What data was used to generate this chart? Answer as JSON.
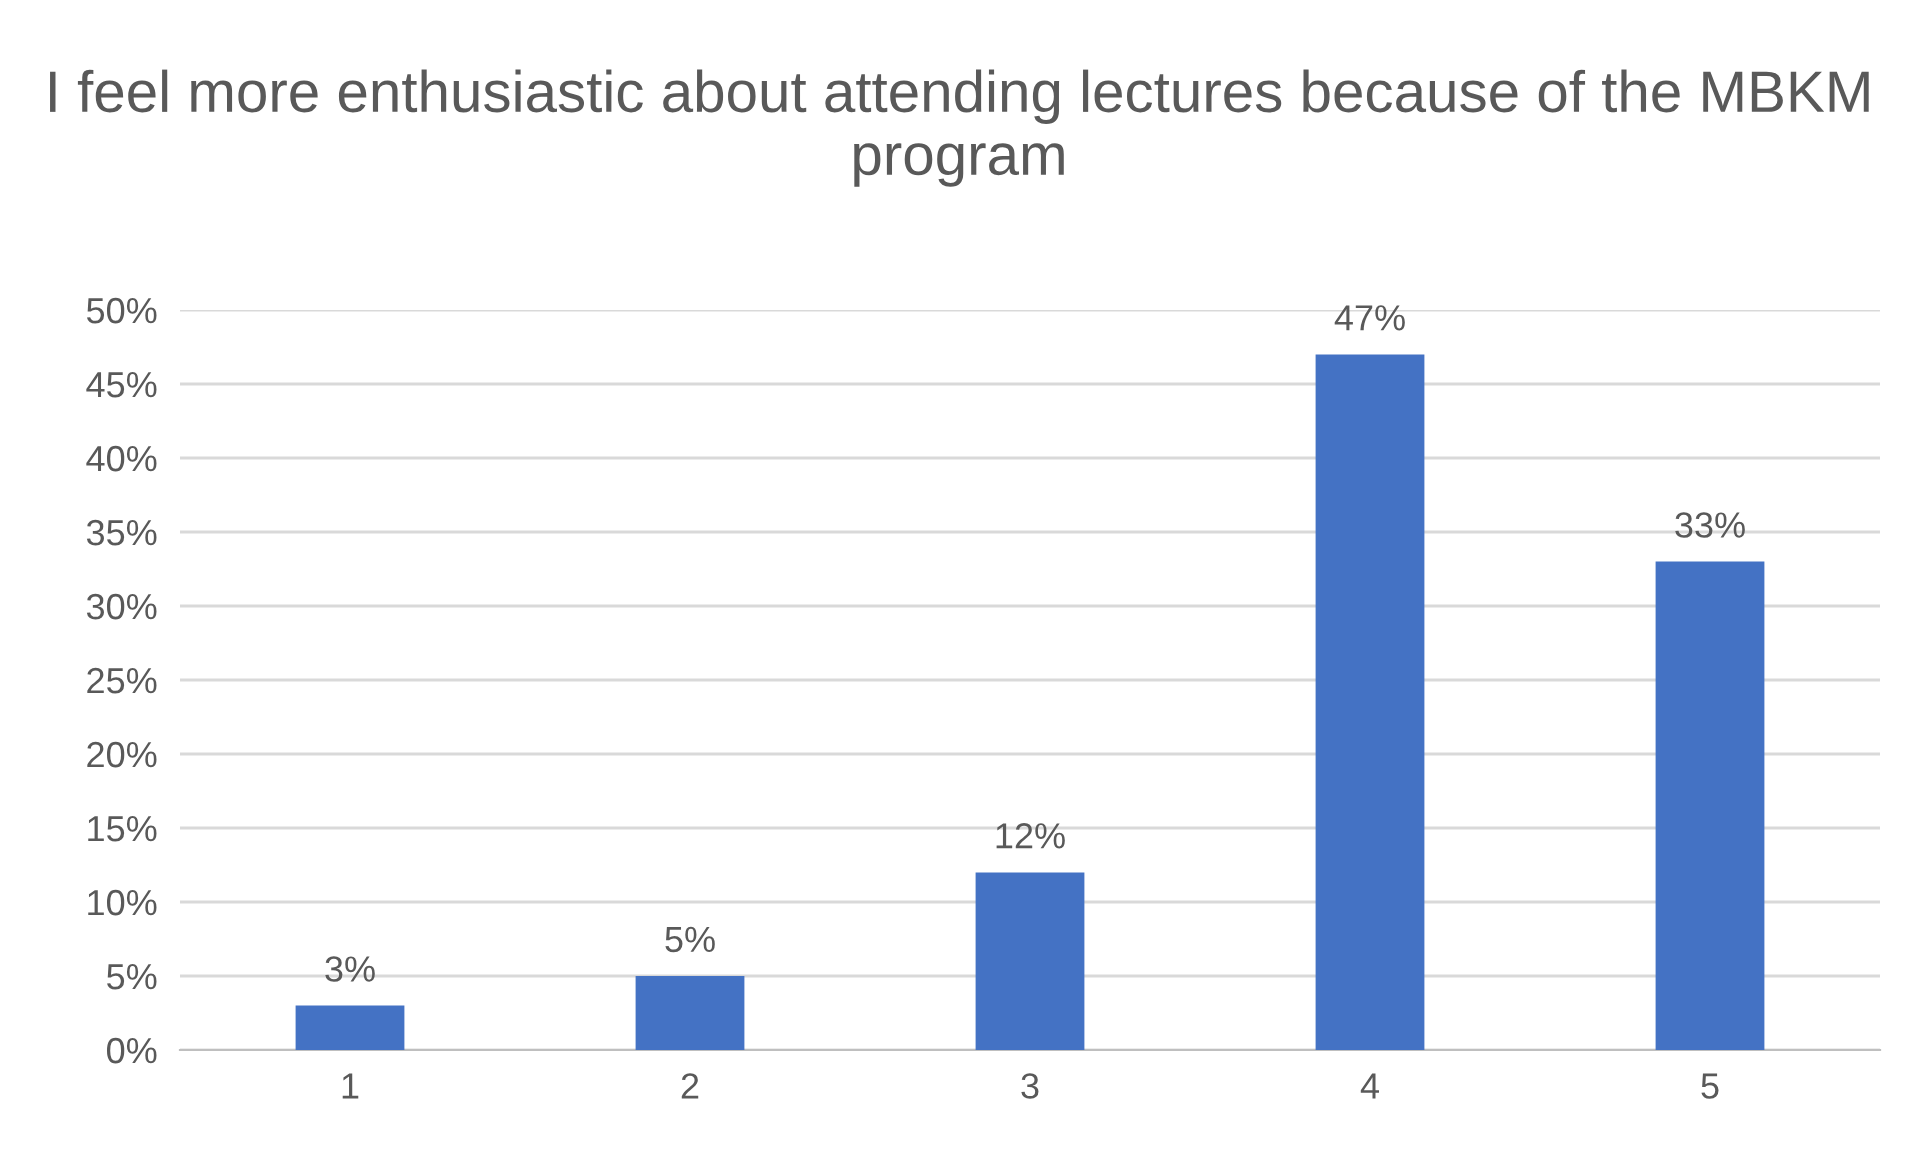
{
  "chart_data": {
    "type": "bar",
    "title": "I feel more enthusiastic about attending lectures because of the MBKM program",
    "categories": [
      "1",
      "2",
      "3",
      "4",
      "5"
    ],
    "values": [
      3,
      5,
      12,
      47,
      33
    ],
    "value_labels": [
      "3%",
      "5%",
      "12%",
      "47%",
      "33%"
    ],
    "color": "#4472c4",
    "ylim": [
      0,
      50
    ],
    "yticks": [
      {
        "value": 0,
        "label": "0%"
      },
      {
        "value": 5,
        "label": "5%"
      },
      {
        "value": 10,
        "label": "10%"
      },
      {
        "value": 15,
        "label": "15%"
      },
      {
        "value": 20,
        "label": "20%"
      },
      {
        "value": 25,
        "label": "25%"
      },
      {
        "value": 30,
        "label": "30%"
      },
      {
        "value": 35,
        "label": "35%"
      },
      {
        "value": 40,
        "label": "40%"
      },
      {
        "value": 45,
        "label": "45%"
      },
      {
        "value": 50,
        "label": "50%"
      }
    ],
    "grid": "y",
    "legend": false
  }
}
